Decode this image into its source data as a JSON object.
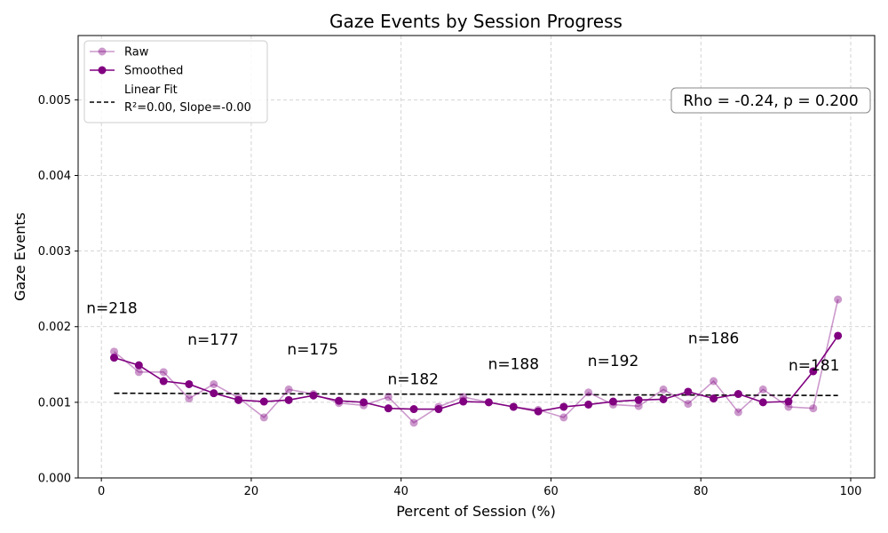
{
  "chart_data": {
    "type": "line",
    "title": "Gaze Events by Session Progress",
    "xlabel": "Percent of Session (%)",
    "ylabel": "Gaze Events",
    "xlim": [
      -3.1,
      103.2
    ],
    "ylim": [
      0,
      0.00585
    ],
    "xticks": [
      0,
      20,
      40,
      60,
      80,
      100
    ],
    "xtick_labels": [
      "0",
      "20",
      "40",
      "60",
      "80",
      "100"
    ],
    "yticks": [
      0,
      0.001,
      0.002,
      0.003,
      0.004,
      0.005
    ],
    "ytick_labels": [
      "0.000",
      "0.001",
      "0.002",
      "0.003",
      "0.004",
      "0.005"
    ],
    "grid": true,
    "legend_position": "top-left",
    "series": [
      {
        "name": "Raw",
        "color": "#800080",
        "alpha": 0.4,
        "x": [
          1.7,
          5.0,
          8.3,
          11.7,
          15.0,
          18.3,
          21.7,
          25.0,
          28.3,
          31.7,
          35.0,
          38.3,
          41.7,
          45.0,
          48.3,
          51.7,
          55.0,
          58.3,
          61.7,
          65.0,
          68.3,
          71.7,
          75.0,
          78.3,
          81.7,
          85.0,
          88.3,
          91.7,
          95.0,
          98.3
        ],
        "y": [
          0.00167,
          0.0014,
          0.0014,
          0.00105,
          0.00124,
          0.00106,
          0.0008,
          0.00117,
          0.00111,
          0.00099,
          0.00096,
          0.00107,
          0.00073,
          0.00094,
          0.00107,
          0.001,
          0.00094,
          0.0009,
          0.0008,
          0.00113,
          0.00097,
          0.00095,
          0.00117,
          0.00098,
          0.00128,
          0.00087,
          0.00117,
          0.00094,
          0.00092,
          0.00236
        ]
      },
      {
        "name": "Smoothed",
        "color": "#800080",
        "alpha": 1.0,
        "x": [
          1.7,
          5.0,
          8.3,
          11.7,
          15.0,
          18.3,
          21.7,
          25.0,
          28.3,
          31.7,
          35.0,
          38.3,
          41.7,
          45.0,
          48.3,
          51.7,
          55.0,
          58.3,
          61.7,
          65.0,
          68.3,
          71.7,
          75.0,
          78.3,
          81.7,
          85.0,
          88.3,
          91.7,
          95.0,
          98.3
        ],
        "y": [
          0.00159,
          0.00149,
          0.00128,
          0.00124,
          0.00112,
          0.00103,
          0.00101,
          0.00103,
          0.00109,
          0.00102,
          0.001,
          0.00092,
          0.00091,
          0.00091,
          0.00101,
          0.001,
          0.00094,
          0.00088,
          0.00094,
          0.00097,
          0.00101,
          0.00103,
          0.00104,
          0.00114,
          0.00105,
          0.00111,
          0.001,
          0.00101,
          0.00141,
          0.00188
        ]
      },
      {
        "name": "Linear Fit",
        "legend_line2": "R²=0.00, Slope=-0.00",
        "color": "#000000",
        "style": "dashed",
        "x": [
          1.7,
          98.3
        ],
        "y": [
          0.00112,
          0.00109
        ]
      }
    ],
    "annotations": [
      {
        "text": "n=218",
        "x": -2.0,
        "y": 0.00218
      },
      {
        "text": "n=177",
        "x": 11.5,
        "y": 0.00176
      },
      {
        "text": "n=175",
        "x": 24.8,
        "y": 0.00163
      },
      {
        "text": "n=182",
        "x": 38.2,
        "y": 0.00124
      },
      {
        "text": "n=188",
        "x": 51.6,
        "y": 0.00144
      },
      {
        "text": "n=192",
        "x": 64.9,
        "y": 0.00148
      },
      {
        "text": "n=186",
        "x": 78.3,
        "y": 0.00178
      },
      {
        "text": "n=181",
        "x": 91.7,
        "y": 0.00142
      }
    ],
    "stat_box": {
      "text": "Rho = -0.24, p = 0.200",
      "position": "top-right"
    }
  }
}
